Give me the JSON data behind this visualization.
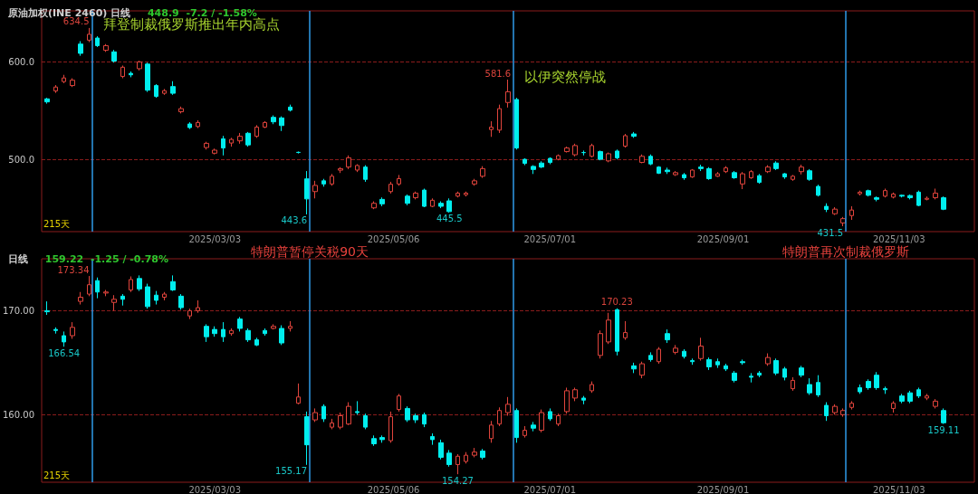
{
  "chart_data": [
    {
      "type": "candlestick",
      "title": "原油加权(INE 2460) 日线",
      "subtitle": "448.9  -7.2 / -1.58%",
      "x": [
        "2025-01-02",
        "2025-01-05",
        "2025-01-08",
        "2025-01-11",
        "2025-01-14",
        "2025-01-17",
        "2025-01-20",
        "2025-01-23",
        "2025-01-26",
        "2025-01-29",
        "2025-02-01",
        "2025-02-04",
        "2025-02-07",
        "2025-02-10",
        "2025-02-13",
        "2025-02-16",
        "2025-02-19",
        "2025-02-22",
        "2025-02-25",
        "2025-02-28",
        "2025-03-03",
        "2025-03-06",
        "2025-03-09",
        "2025-03-12",
        "2025-03-15",
        "2025-03-18",
        "2025-03-21",
        "2025-03-24",
        "2025-03-27",
        "2025-03-30",
        "2025-04-02",
        "2025-04-05",
        "2025-04-08",
        "2025-04-11",
        "2025-04-14",
        "2025-04-17",
        "2025-04-20",
        "2025-04-23",
        "2025-04-26",
        "2025-04-29",
        "2025-05-02",
        "2025-05-05",
        "2025-05-08",
        "2025-05-11",
        "2025-05-14",
        "2025-05-17",
        "2025-05-20",
        "2025-05-23",
        "2025-05-26",
        "2025-05-29",
        "2025-06-01",
        "2025-06-04",
        "2025-06-07",
        "2025-06-10",
        "2025-06-13",
        "2025-06-16",
        "2025-06-19",
        "2025-06-22",
        "2025-06-25",
        "2025-06-28",
        "2025-07-01",
        "2025-07-04",
        "2025-07-07",
        "2025-07-10",
        "2025-07-13",
        "2025-07-16",
        "2025-07-19",
        "2025-07-22",
        "2025-07-25",
        "2025-07-28",
        "2025-07-31",
        "2025-08-03",
        "2025-08-06",
        "2025-08-09",
        "2025-08-12",
        "2025-08-15",
        "2025-08-18",
        "2025-08-21",
        "2025-08-24",
        "2025-08-27",
        "2025-08-30",
        "2025-09-02",
        "2025-09-05",
        "2025-09-08",
        "2025-09-11",
        "2025-09-14",
        "2025-09-17",
        "2025-09-20",
        "2025-09-23",
        "2025-09-26",
        "2025-09-29",
        "2025-10-02",
        "2025-10-05",
        "2025-10-08",
        "2025-10-11",
        "2025-10-14",
        "2025-10-17",
        "2025-10-20",
        "2025-10-23",
        "2025-10-26",
        "2025-10-29",
        "2025-11-01",
        "2025-11-04",
        "2025-11-07",
        "2025-11-10",
        "2025-11-13",
        "2025-11-16",
        "2025-11-19"
      ],
      "ohlc": [
        [
          561.9,
          563,
          557,
          558.8
        ],
        [
          570,
          576,
          568,
          574
        ],
        [
          579.6,
          586.5,
          578,
          583.3
        ],
        [
          575.5,
          583,
          574,
          581
        ],
        [
          618,
          621,
          606,
          608.5
        ],
        [
          622,
          634.5,
          620,
          628
        ],
        [
          624.2,
          626,
          615,
          616.4
        ],
        [
          611.6,
          618,
          610,
          616.4
        ],
        [
          610,
          612,
          599,
          600.6
        ],
        [
          584.9,
          596,
          583,
          594.3
        ],
        [
          588,
          590,
          584,
          586.5
        ],
        [
          592.8,
          601,
          591,
          599.7
        ],
        [
          597.5,
          599,
          569,
          570.8
        ],
        [
          575.5,
          577,
          563,
          564.5
        ],
        [
          567.6,
          572,
          566,
          570.3
        ],
        [
          574.5,
          580,
          566,
          567.6
        ],
        [
          548.7,
          554,
          547,
          551.9
        ],
        [
          536.2,
          538,
          531,
          532.5
        ],
        [
          533.6,
          540,
          532,
          537.7
        ],
        [
          512.1,
          518,
          510,
          516.4
        ],
        [
          506.3,
          511,
          505,
          509.4
        ],
        [
          521,
          524,
          504,
          511.6
        ],
        [
          516.7,
          522,
          513,
          520.4
        ],
        [
          518.9,
          527,
          516,
          523.6
        ],
        [
          526.7,
          528,
          513,
          514.8
        ],
        [
          523.6,
          535,
          522,
          533
        ],
        [
          533,
          539,
          532,
          537.7
        ],
        [
          543,
          545,
          536,
          538.4
        ],
        [
          542.4,
          544,
          529,
          534.6
        ],
        [
          553.5,
          556,
          549,
          550.3
        ],
        [
          507.2,
          508,
          506,
          507
        ],
        [
          480,
          488,
          443.6,
          459.5
        ],
        [
          467,
          478,
          460,
          473.3
        ],
        [
          478,
          480,
          472,
          474.8
        ],
        [
          474.8,
          485,
          473,
          482.7
        ],
        [
          488.9,
          492,
          486,
          490.5
        ],
        [
          492.1,
          504,
          490,
          501.6
        ],
        [
          489,
          495,
          487,
          493.7
        ],
        [
          492.1,
          494,
          477,
          479.5
        ],
        [
          450.3,
          457,
          449,
          455
        ],
        [
          459,
          461,
          452,
          454.4
        ],
        [
          467,
          477,
          465,
          474.5
        ],
        [
          474.8,
          484,
          473,
          480.2
        ],
        [
          462.3,
          464,
          453,
          455
        ],
        [
          460.7,
          467,
          459,
          465.4
        ],
        [
          468.5,
          470,
          451,
          451.9
        ],
        [
          451.9,
          460,
          451,
          458.1
        ],
        [
          455,
          457,
          450,
          451.9
        ],
        [
          457.5,
          460,
          445.5,
          446.5
        ],
        [
          462.3,
          467,
          461,
          465.4
        ],
        [
          463.8,
          467,
          462,
          465.4
        ],
        [
          474.8,
          480,
          473,
          478
        ],
        [
          482.7,
          493,
          481,
          490.5
        ],
        [
          530.5,
          539,
          523,
          533
        ],
        [
          529.9,
          556,
          527,
          551.9
        ],
        [
          558.2,
          581.6,
          553,
          569.2
        ],
        [
          561.3,
          563,
          510,
          511.6
        ],
        [
          500,
          501,
          494,
          495.9
        ],
        [
          492.8,
          494,
          485,
          489.6
        ],
        [
          496.2,
          498,
          491,
          492.1
        ],
        [
          501,
          502,
          495,
          496.8
        ],
        [
          500,
          505,
          499,
          503.8
        ],
        [
          507.9,
          513,
          507,
          511.6
        ],
        [
          504.7,
          516,
          503,
          514.1
        ],
        [
          507,
          509,
          504,
          506.9
        ],
        [
          503.1,
          516,
          502,
          514.1
        ],
        [
          507.9,
          509,
          499,
          500
        ],
        [
          498.4,
          507,
          497,
          505.7
        ],
        [
          508.5,
          510,
          500,
          501.6
        ],
        [
          513.5,
          526,
          512,
          524.2
        ],
        [
          526,
          528,
          522,
          523.6
        ],
        [
          496.8,
          505,
          496,
          503.1
        ],
        [
          503.1,
          505,
          494,
          495.3
        ],
        [
          492.1,
          493,
          485,
          485.8
        ],
        [
          489,
          491.5,
          485,
          487.4
        ],
        [
          484.3,
          488,
          483,
          486.4
        ],
        [
          484.3,
          486,
          479,
          481.1
        ],
        [
          482,
          490,
          481,
          489
        ],
        [
          492.1,
          494.5,
          488,
          490.5
        ],
        [
          490.5,
          492,
          479,
          480.2
        ],
        [
          482.7,
          487,
          482,
          485.2
        ],
        [
          487.4,
          493,
          486,
          491.2
        ],
        [
          486.4,
          488,
          480,
          481.1
        ],
        [
          474.8,
          487,
          469.5,
          485.2
        ],
        [
          481.1,
          489,
          480,
          487.4
        ],
        [
          483.3,
          485,
          475,
          476.4
        ],
        [
          487.4,
          494,
          486,
          492.1
        ],
        [
          496.2,
          498,
          489,
          490.5
        ],
        [
          485.2,
          486,
          480,
          482
        ],
        [
          479.5,
          484,
          478,
          482.7
        ],
        [
          487.4,
          494.5,
          484.5,
          492.1
        ],
        [
          488.3,
          490,
          478,
          479.5
        ],
        [
          472.3,
          474,
          462,
          463.2
        ],
        [
          451.9,
          455,
          446,
          448.7
        ],
        [
          444.3,
          451,
          443,
          449
        ],
        [
          434.9,
          441,
          431.5,
          439.3
        ],
        [
          442.4,
          452,
          438,
          448.1
        ],
        [
          464.8,
          468,
          463,
          466.4
        ],
        [
          467.9,
          469,
          462,
          463.2
        ],
        [
          460.7,
          462,
          457,
          459.1
        ],
        [
          462.3,
          470,
          461,
          468
        ],
        [
          461.3,
          466,
          460,
          464.5
        ],
        [
          463.2,
          464,
          461,
          462.3
        ],
        [
          462.9,
          464,
          459,
          460.7
        ],
        [
          466.4,
          468,
          452,
          452.8
        ],
        [
          459.1,
          462,
          458,
          460.1
        ],
        [
          460.7,
          470,
          459,
          465.4
        ],
        [
          460.7,
          462,
          448,
          448.9
        ]
      ],
      "xlim": [
        "2024-12-31",
        "2025-11-30"
      ],
      "xticks": [
        {
          "value": "2025-03-03",
          "label": "2025/03/03"
        },
        {
          "value": "2025-05-06",
          "label": "2025/05/06"
        },
        {
          "value": "2025-07-01",
          "label": "2025/07/01"
        },
        {
          "value": "2025-09-01",
          "label": "2025/09/01"
        },
        {
          "value": "2025-11-03",
          "label": "2025/11/03"
        }
      ],
      "ylim": [
        426,
        652
      ],
      "yticks": [
        {
          "value": 500,
          "label": "500.0"
        },
        {
          "value": 600,
          "label": "600.0"
        }
      ],
      "grid": "y",
      "ref_lines": [
        {
          "axis": "x",
          "value": "2025-01-18",
          "label": "拜登制裁俄罗斯推出年内高点",
          "color": "#2f9be8"
        },
        {
          "axis": "x",
          "value": "2025-04-06",
          "color": "#2f9be8"
        },
        {
          "axis": "x",
          "value": "2025-06-18",
          "label": "以伊突然停战",
          "color": "#2f9be8"
        },
        {
          "axis": "x",
          "value": "2025-10-15",
          "color": "#2f9be8"
        }
      ],
      "annotations": [
        "215天",
        {
          "text": "634.5",
          "x": "2025-01-17",
          "y": 634.5
        },
        {
          "text": "443.6",
          "x": "2025-04-05",
          "y": 443.6
        },
        {
          "text": "445.5",
          "x": "2025-05-26",
          "y": 445.5
        },
        {
          "text": "581.6",
          "x": "2025-06-16",
          "y": 581.6
        },
        {
          "text": "431.5",
          "x": "2025-10-14",
          "y": 431.5
        }
      ]
    },
    {
      "type": "candlestick",
      "title": "日线",
      "subtitle": "159.22  -1.25 / -0.78%",
      "x": [
        "2025-01-02",
        "2025-01-05",
        "2025-01-08",
        "2025-01-11",
        "2025-01-14",
        "2025-01-17",
        "2025-01-20",
        "2025-01-23",
        "2025-01-26",
        "2025-01-29",
        "2025-02-01",
        "2025-02-04",
        "2025-02-07",
        "2025-02-10",
        "2025-02-13",
        "2025-02-16",
        "2025-02-19",
        "2025-02-22",
        "2025-02-25",
        "2025-02-28",
        "2025-03-03",
        "2025-03-06",
        "2025-03-09",
        "2025-03-12",
        "2025-03-15",
        "2025-03-18",
        "2025-03-21",
        "2025-03-24",
        "2025-03-27",
        "2025-03-30",
        "2025-04-02",
        "2025-04-05",
        "2025-04-08",
        "2025-04-11",
        "2025-04-14",
        "2025-04-17",
        "2025-04-20",
        "2025-04-23",
        "2025-04-26",
        "2025-04-29",
        "2025-05-02",
        "2025-05-05",
        "2025-05-08",
        "2025-05-11",
        "2025-05-14",
        "2025-05-17",
        "2025-05-20",
        "2025-05-23",
        "2025-05-26",
        "2025-05-29",
        "2025-06-01",
        "2025-06-04",
        "2025-06-07",
        "2025-06-10",
        "2025-06-13",
        "2025-06-16",
        "2025-06-19",
        "2025-06-22",
        "2025-06-25",
        "2025-06-28",
        "2025-07-01",
        "2025-07-04",
        "2025-07-07",
        "2025-07-10",
        "2025-07-13",
        "2025-07-16",
        "2025-07-19",
        "2025-07-22",
        "2025-07-25",
        "2025-07-28",
        "2025-07-31",
        "2025-08-03",
        "2025-08-06",
        "2025-08-09",
        "2025-08-12",
        "2025-08-15",
        "2025-08-18",
        "2025-08-21",
        "2025-08-24",
        "2025-08-27",
        "2025-08-30",
        "2025-09-02",
        "2025-09-05",
        "2025-09-08",
        "2025-09-11",
        "2025-09-14",
        "2025-09-17",
        "2025-09-20",
        "2025-09-23",
        "2025-09-26",
        "2025-09-29",
        "2025-10-02",
        "2025-10-05",
        "2025-10-08",
        "2025-10-11",
        "2025-10-14",
        "2025-10-17",
        "2025-10-20",
        "2025-10-23",
        "2025-10-26",
        "2025-10-29",
        "2025-11-01",
        "2025-11-04",
        "2025-11-07",
        "2025-11-10",
        "2025-11-13",
        "2025-11-16",
        "2025-11-19"
      ],
      "ohlc": [
        [
          170,
          170.9,
          169.6,
          169.9
        ],
        [
          168.2,
          168.4,
          167.8,
          168.1
        ],
        [
          167.6,
          168,
          166.54,
          167
        ],
        [
          167.6,
          168.9,
          167.3,
          168.4
        ],
        [
          170.9,
          171.8,
          170.6,
          171.3
        ],
        [
          171.6,
          173.34,
          171.4,
          172.5
        ],
        [
          172.9,
          173.2,
          171.2,
          171.8
        ],
        [
          171.7,
          172,
          171.4,
          171.8
        ],
        [
          170.8,
          171.5,
          170,
          171.1
        ],
        [
          171.4,
          171.6,
          170.5,
          171.1
        ],
        [
          172,
          173.3,
          171.8,
          173
        ],
        [
          173.1,
          173.4,
          171.9,
          172.1
        ],
        [
          172.3,
          172.6,
          170.2,
          170.4
        ],
        [
          171.5,
          171.9,
          170.6,
          171
        ],
        [
          171.3,
          171.8,
          171,
          171.6
        ],
        [
          172.8,
          173.4,
          171.9,
          172
        ],
        [
          171.4,
          171.6,
          170.1,
          170.3
        ],
        [
          169.5,
          170.2,
          169.2,
          170
        ],
        [
          170,
          171,
          169.8,
          170.3
        ],
        [
          168.5,
          168.7,
          167,
          167.5
        ],
        [
          168.2,
          168.5,
          167.5,
          167.8
        ],
        [
          168.2,
          168.9,
          167,
          167.5
        ],
        [
          167.8,
          168.3,
          167.6,
          168.1
        ],
        [
          169.2,
          169.4,
          168,
          168.3
        ],
        [
          168.1,
          168.3,
          167,
          167.2
        ],
        [
          167.2,
          167.4,
          166.6,
          166.7
        ],
        [
          168.1,
          168.3,
          167.6,
          167.8
        ],
        [
          168.3,
          168.7,
          168.2,
          168.5
        ],
        [
          168.3,
          168.6,
          166.7,
          166.9
        ],
        [
          168.3,
          169,
          168,
          168.5
        ],
        [
          161.1,
          163,
          161,
          161.7
        ],
        [
          159.8,
          160.3,
          155.17,
          157.1
        ],
        [
          159.5,
          160.6,
          159.3,
          160.2
        ],
        [
          160.8,
          161,
          159.3,
          159.6
        ],
        [
          158.8,
          159.6,
          158.6,
          159.2
        ],
        [
          158.8,
          160.2,
          158.6,
          159.9
        ],
        [
          159.1,
          161.2,
          159,
          160.8
        ],
        [
          160.3,
          161.3,
          160,
          160.2
        ],
        [
          159.9,
          160.1,
          158.6,
          158.8
        ],
        [
          157.7,
          158,
          157,
          157.2
        ],
        [
          157.8,
          158,
          157.3,
          157.6
        ],
        [
          157.5,
          160.3,
          157.3,
          159.8
        ],
        [
          160.5,
          162,
          160.3,
          161.8
        ],
        [
          160.6,
          160.8,
          159.3,
          159.5
        ],
        [
          159.9,
          160.1,
          159.2,
          159.5
        ],
        [
          160,
          160.2,
          158.8,
          159.1
        ],
        [
          157.9,
          158.2,
          157.1,
          157.6
        ],
        [
          157.3,
          157.6,
          155.7,
          155.9
        ],
        [
          156.3,
          156.6,
          155,
          155.2
        ],
        [
          155.2,
          156.2,
          154.27,
          156
        ],
        [
          155.5,
          156.4,
          155.3,
          156.1
        ],
        [
          156.1,
          156.8,
          155.9,
          156.4
        ],
        [
          156.5,
          156.7,
          155.7,
          155.9
        ],
        [
          157.7,
          159.4,
          157.3,
          159
        ],
        [
          159.1,
          160.7,
          158.9,
          160.4
        ],
        [
          160.2,
          161.7,
          159.9,
          161
        ],
        [
          160.4,
          160.6,
          157.3,
          157.8
        ],
        [
          158,
          158.9,
          157.8,
          158.5
        ],
        [
          159,
          159.3,
          158.4,
          158.7
        ],
        [
          158.5,
          160.5,
          158.3,
          160.2
        ],
        [
          160.3,
          160.6,
          159.4,
          159.6
        ],
        [
          159.1,
          160.1,
          158.9,
          159.9
        ],
        [
          160.3,
          162.6,
          160.1,
          162.3
        ],
        [
          161.6,
          162.6,
          161.3,
          162.4
        ],
        [
          161.6,
          161.8,
          161,
          161.4
        ],
        [
          162.3,
          163.2,
          162.1,
          162.9
        ],
        [
          165.7,
          168.1,
          165.4,
          167.8
        ],
        [
          167,
          169.8,
          166.8,
          169.1
        ],
        [
          170.1,
          170.23,
          165.7,
          166.1
        ],
        [
          167.4,
          169,
          167.2,
          167.9
        ],
        [
          164.7,
          165,
          164,
          164.4
        ],
        [
          163.8,
          165.1,
          163.5,
          164.9
        ],
        [
          165.7,
          166,
          165.1,
          165.3
        ],
        [
          165.1,
          166.5,
          164.9,
          166.3
        ],
        [
          167.8,
          168.2,
          166.9,
          167.2
        ],
        [
          166,
          166.7,
          165.8,
          166.4
        ],
        [
          166.1,
          166.3,
          165.4,
          165.6
        ],
        [
          165.2,
          165.4,
          164.8,
          165.1
        ],
        [
          165.4,
          167.4,
          165.2,
          166.6
        ],
        [
          165.3,
          165.5,
          164.3,
          164.6
        ],
        [
          165.1,
          165.4,
          164.5,
          164.8
        ],
        [
          164.7,
          164.9,
          164.2,
          164.4
        ],
        [
          164,
          164.2,
          163.1,
          163.3
        ],
        [
          165.1,
          165.3,
          164.8,
          165
        ],
        [
          163.7,
          164,
          163.1,
          163.6
        ],
        [
          164,
          164.2,
          163.6,
          163.8
        ],
        [
          164.9,
          165.9,
          164.7,
          165.5
        ],
        [
          165.2,
          165.4,
          163.8,
          164
        ],
        [
          164.4,
          164.6,
          163.3,
          163.6
        ],
        [
          162.5,
          163.6,
          162.3,
          163.3
        ],
        [
          164.5,
          164.7,
          163.6,
          163.8
        ],
        [
          162.9,
          163.5,
          161.9,
          162.1
        ],
        [
          163.1,
          163.8,
          161.7,
          161.9
        ],
        [
          160.9,
          161.2,
          159.4,
          159.9
        ],
        [
          160.2,
          161,
          160,
          160.8
        ],
        [
          160,
          160.6,
          159.8,
          160.4
        ],
        [
          160.7,
          161.3,
          160.5,
          161.1
        ],
        [
          162.6,
          162.9,
          162,
          162.2
        ],
        [
          163.2,
          163.4,
          162.4,
          162.6
        ],
        [
          163.8,
          164.1,
          162.4,
          162.6
        ],
        [
          162.5,
          162.7,
          162,
          162.4
        ],
        [
          160.6,
          161.3,
          160.2,
          161.1
        ],
        [
          161.8,
          162,
          161.1,
          161.3
        ],
        [
          162.1,
          162.3,
          161.1,
          161.3
        ],
        [
          162.4,
          162.6,
          161.6,
          161.8
        ],
        [
          161.6,
          162,
          161.4,
          161.8
        ],
        [
          160.8,
          161.5,
          160.6,
          161.3
        ],
        [
          160.4,
          160.6,
          159.11,
          159.22
        ]
      ],
      "xlim": [
        "2024-12-31",
        "2025-11-30"
      ],
      "xticks": [
        {
          "value": "2025-03-03",
          "label": "2025/03/03"
        },
        {
          "value": "2025-05-06",
          "label": "2025/05/06"
        },
        {
          "value": "2025-07-01",
          "label": "2025/07/01"
        },
        {
          "value": "2025-09-01",
          "label": "2025/09/01"
        },
        {
          "value": "2025-11-03",
          "label": "2025/11/03"
        }
      ],
      "ylim": [
        153.5,
        175
      ],
      "yticks": [
        {
          "value": 160,
          "label": "160.00"
        },
        {
          "value": 170,
          "label": "170.00"
        }
      ],
      "grid": "y",
      "ref_lines": [
        {
          "axis": "x",
          "value": "2025-01-18",
          "color": "#2f9be8"
        },
        {
          "axis": "x",
          "value": "2025-04-06",
          "label": "特朗普暂停关税90天",
          "color": "#2f9be8"
        },
        {
          "axis": "x",
          "value": "2025-06-18",
          "color": "#2f9be8"
        },
        {
          "axis": "x",
          "value": "2025-10-15",
          "label": "特朗普再次制裁俄罗斯",
          "color": "#2f9be8"
        }
      ],
      "annotations": [
        "215天",
        {
          "text": "166.54",
          "x": "2025-01-08",
          "y": 166.54
        },
        {
          "text": "173.34",
          "x": "2025-01-17",
          "y": 173.34
        },
        {
          "text": "155.17",
          "x": "2025-04-05",
          "y": 155.17
        },
        {
          "text": "154.27",
          "x": "2025-05-29",
          "y": 154.27
        },
        {
          "text": "170.23",
          "x": "2025-07-25",
          "y": 170.23
        },
        {
          "text": "159.11",
          "x": "2025-11-19",
          "y": 159.11
        }
      ]
    }
  ]
}
